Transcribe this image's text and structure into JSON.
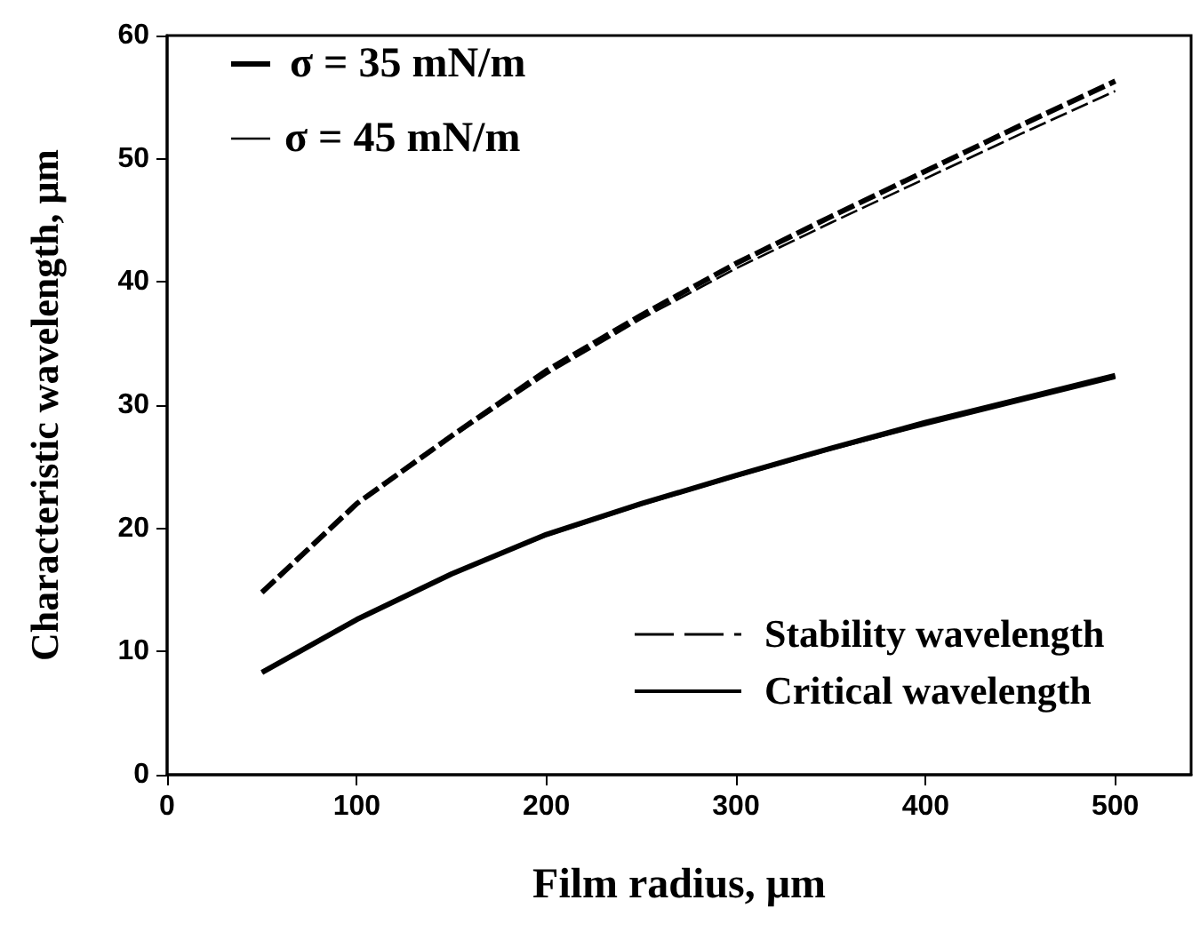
{
  "chart_data": {
    "type": "line",
    "xlabel": "Film radius, μm",
    "ylabel": "Characteristic wavelength, μm",
    "x": [
      50,
      100,
      150,
      200,
      250,
      300,
      350,
      400,
      450,
      500
    ],
    "series": [
      {
        "color": "#000000",
        "line_style": "dashed",
        "values": [
          14.8,
          22.0,
          27.5,
          32.8,
          37.3,
          41.5,
          45.3,
          49.0,
          52.7,
          56.3
        ]
      },
      {
        "color": "#000000",
        "line_style": "dashed",
        "values": [
          14.8,
          22.0,
          27.4,
          32.5,
          37.0,
          41.1,
          44.8,
          48.4,
          52.0,
          55.5
        ]
      },
      {
        "color": "#000000",
        "line_style": "solid",
        "values": [
          8.3,
          12.6,
          16.3,
          19.5,
          22.0,
          24.3,
          26.5,
          28.6,
          30.5,
          32.4
        ]
      },
      {
        "color": "#000000",
        "line_style": "solid",
        "values": [
          8.3,
          12.6,
          16.3,
          19.4,
          21.9,
          24.2,
          26.4,
          28.4,
          30.3,
          32.2
        ]
      }
    ],
    "annotations": [
      "σ = 35 mN/m",
      "σ = 45 mN/m",
      "Stability wavelength",
      "Critical wavelength"
    ],
    "xlim": [
      0,
      540
    ],
    "xticks": [
      0,
      100,
      200,
      300,
      400,
      500
    ],
    "ylim": [
      0,
      60
    ],
    "yticks": [
      0,
      10,
      20,
      30,
      40,
      50,
      60
    ],
    "marker": "none",
    "grid": false
  }
}
